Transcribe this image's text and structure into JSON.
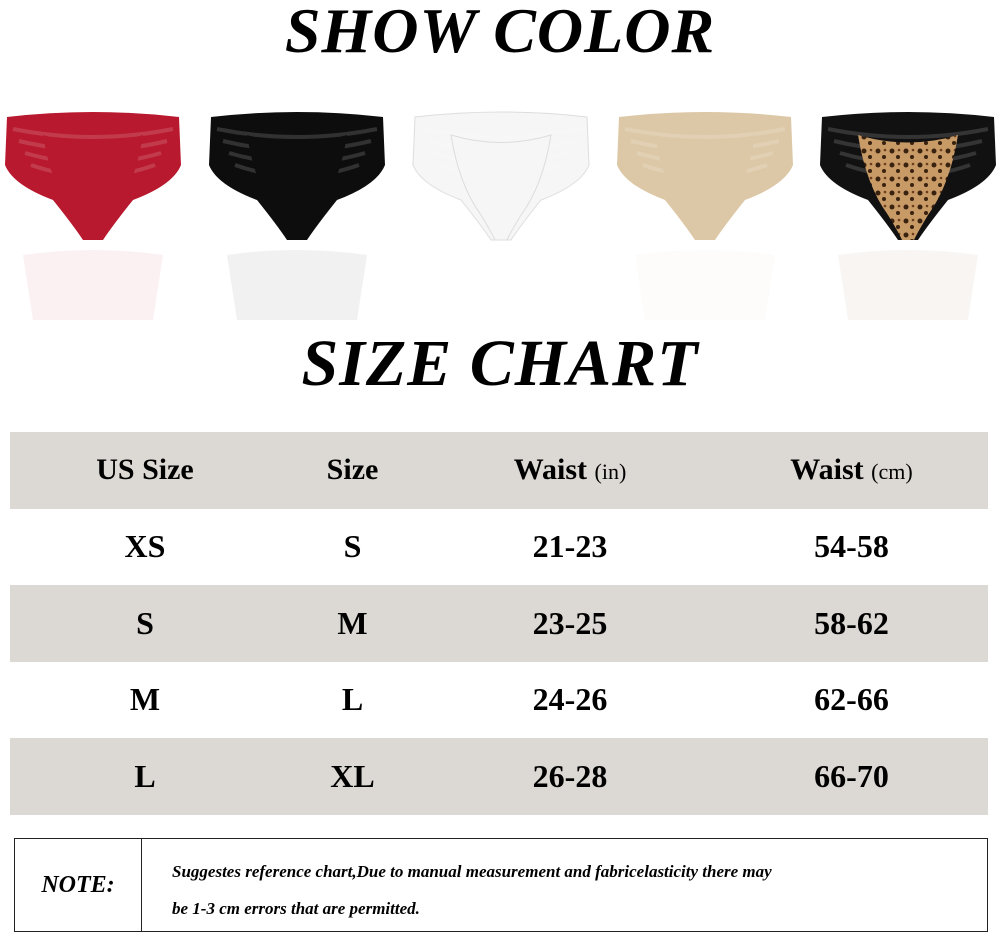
{
  "headings": {
    "show_color": "SHOW COLOR",
    "size_chart": "SIZE CHART"
  },
  "colors": [
    {
      "name": "red",
      "hex": "#b8192e"
    },
    {
      "name": "black",
      "hex": "#0d0d0d"
    },
    {
      "name": "white",
      "hex": "#f6f6f6"
    },
    {
      "name": "nude",
      "hex": "#dcc8a6"
    },
    {
      "name": "leopard",
      "hex": "#8a5a34"
    }
  ],
  "table": {
    "headers": [
      {
        "label": "US Size",
        "unit": ""
      },
      {
        "label": "Size",
        "unit": ""
      },
      {
        "label": "Waist",
        "unit": "(in)"
      },
      {
        "label": "Waist",
        "unit": "(cm)"
      }
    ],
    "rows": [
      [
        "XS",
        "S",
        "21-23",
        "54-58"
      ],
      [
        "S",
        "M",
        "23-25",
        "58-62"
      ],
      [
        "M",
        "L",
        "24-26",
        "62-66"
      ],
      [
        "L",
        "XL",
        "26-28",
        "66-70"
      ]
    ]
  },
  "note": {
    "label": "NOTE:",
    "line1": "Suggestes reference chart,Due to manual measurement and fabricelasticity there may",
    "line2": "be 1-3 cm errors that are permitted."
  }
}
